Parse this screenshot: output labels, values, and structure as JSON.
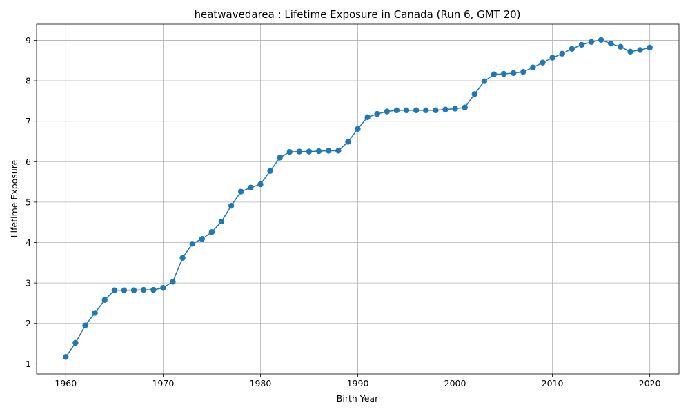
{
  "chart_data": {
    "type": "line",
    "title": "heatwavedarea : Lifetime Exposure in Canada (Run 6, GMT 20)",
    "xlabel": "Birth Year",
    "ylabel": "Lifetime Exposure",
    "xlim": [
      1957,
      2023
    ],
    "ylim": [
      0.75,
      9.4
    ],
    "xticks": [
      1960,
      1970,
      1980,
      1990,
      2000,
      2010,
      2020
    ],
    "yticks": [
      1,
      2,
      3,
      4,
      5,
      6,
      7,
      8,
      9
    ],
    "grid": true,
    "marker": "circle",
    "colors": {
      "series": "#1f77b4"
    },
    "series": [
      {
        "x": [
          1960,
          1961,
          1962,
          1963,
          1964,
          1965,
          1966,
          1967,
          1968,
          1969,
          1970,
          1971,
          1972,
          1973,
          1974,
          1975,
          1976,
          1977,
          1978,
          1979,
          1980,
          1981,
          1982,
          1983,
          1984,
          1985,
          1986,
          1987,
          1988,
          1989,
          1990,
          1991,
          1992,
          1993,
          1994,
          1995,
          1996,
          1997,
          1998,
          1999,
          2000,
          2001,
          2002,
          2003,
          2004,
          2005,
          2006,
          2007,
          2008,
          2009,
          2010,
          2011,
          2012,
          2013,
          2014,
          2015,
          2016,
          2017,
          2018,
          2019,
          2020
        ],
        "values": [
          1.17,
          1.52,
          1.95,
          2.26,
          2.58,
          2.82,
          2.82,
          2.82,
          2.83,
          2.83,
          2.88,
          3.03,
          3.62,
          3.97,
          4.09,
          4.26,
          4.52,
          4.91,
          5.26,
          5.36,
          5.44,
          5.77,
          6.1,
          6.24,
          6.25,
          6.25,
          6.26,
          6.27,
          6.27,
          6.49,
          6.81,
          7.1,
          7.18,
          7.24,
          7.27,
          7.27,
          7.27,
          7.27,
          7.27,
          7.29,
          7.31,
          7.34,
          7.67,
          7.99,
          8.16,
          8.17,
          8.19,
          8.22,
          8.33,
          8.45,
          8.57,
          8.67,
          8.79,
          8.89,
          8.96,
          9.01,
          8.92,
          8.84,
          8.72,
          8.76,
          8.82
        ]
      }
    ]
  }
}
